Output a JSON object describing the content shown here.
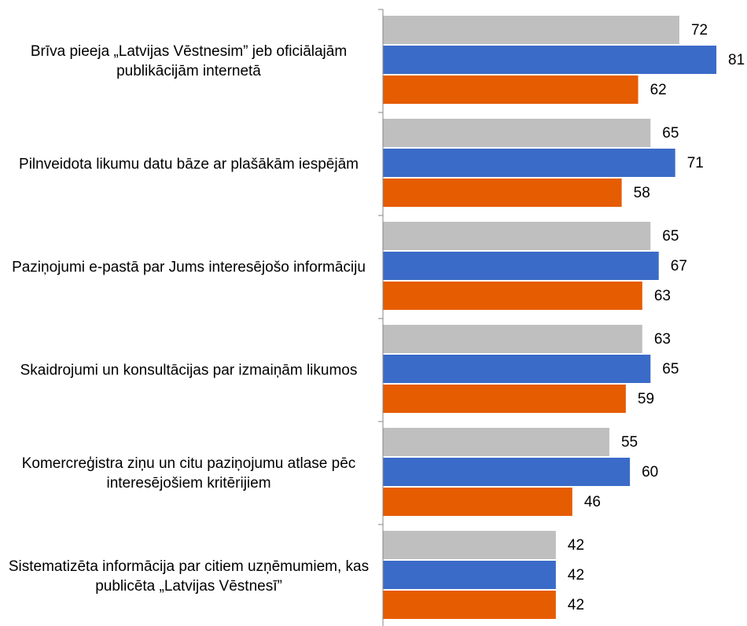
{
  "chart_data": {
    "type": "hbar",
    "categories": [
      "Brīva pieeja „Latvijas Vēstnesim” jeb oficiālajām publikācijām internetā",
      "Pilnveidota likumu datu bāze ar plašākām iespējām",
      "Paziņojumi e-pastā par Jums interesējošo informāciju",
      "Skaidrojumi un konsultācijas par izmaiņām likumos",
      "Komercreģistra ziņu un citu paziņojumu atlase pēc interesējošiem kritērijiem",
      "Sistematizēta informācija par citiem uzņēmumiem, kas publicēta „Latvijas Vēstnesī”"
    ],
    "series": [
      {
        "color": "#bfbfbf",
        "values": [
          72,
          65,
          65,
          63,
          55,
          42
        ]
      },
      {
        "color": "#3a6bc8",
        "values": [
          81,
          71,
          67,
          65,
          60,
          42
        ]
      },
      {
        "color": "#e65c00",
        "values": [
          62,
          58,
          63,
          59,
          46,
          42
        ]
      }
    ],
    "xlim": [
      0,
      85
    ]
  }
}
